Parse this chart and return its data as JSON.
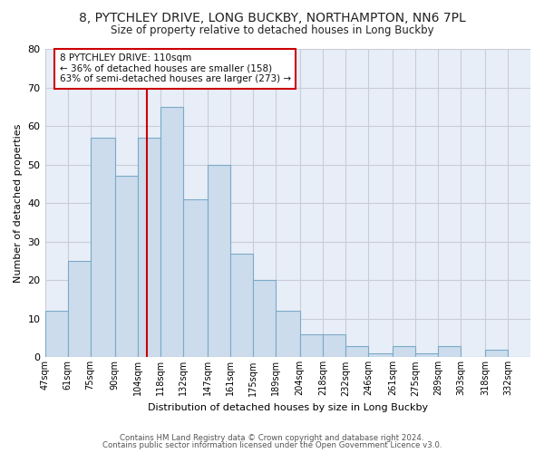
{
  "title1": "8, PYTCHLEY DRIVE, LONG BUCKBY, NORTHAMPTON, NN6 7PL",
  "title2": "Size of property relative to detached houses in Long Buckby",
  "xlabel": "Distribution of detached houses by size in Long Buckby",
  "ylabel": "Number of detached properties",
  "categories": [
    "47sqm",
    "61sqm",
    "75sqm",
    "90sqm",
    "104sqm",
    "118sqm",
    "132sqm",
    "147sqm",
    "161sqm",
    "175sqm",
    "189sqm",
    "204sqm",
    "218sqm",
    "232sqm",
    "246sqm",
    "261sqm",
    "275sqm",
    "289sqm",
    "303sqm",
    "318sqm",
    "332sqm"
  ],
  "values": [
    12,
    25,
    57,
    47,
    57,
    65,
    41,
    50,
    27,
    20,
    12,
    6,
    6,
    3,
    1,
    3,
    1,
    3,
    0,
    2,
    0
  ],
  "bar_color": "#ccdcec",
  "bar_edge_color": "#7aaac8",
  "property_line_x": 110,
  "bin_edges": [
    47,
    61,
    75,
    90,
    104,
    118,
    132,
    147,
    161,
    175,
    189,
    204,
    218,
    232,
    246,
    261,
    275,
    289,
    303,
    318,
    332,
    346
  ],
  "annotation_line1": "8 PYTCHLEY DRIVE: 110sqm",
  "annotation_line2": "← 36% of detached houses are smaller (158)",
  "annotation_line3": "63% of semi-detached houses are larger (273) →",
  "red_line_color": "#cc0000",
  "footer1": "Contains HM Land Registry data © Crown copyright and database right 2024.",
  "footer2": "Contains public sector information licensed under the Open Government Licence v3.0.",
  "ylim": [
    0,
    80
  ],
  "yticks": [
    0,
    10,
    20,
    30,
    40,
    50,
    60,
    70,
    80
  ],
  "plot_bg_color": "#e8eef8",
  "grid_color": "#c8ccd8",
  "fig_bg_color": "#ffffff"
}
